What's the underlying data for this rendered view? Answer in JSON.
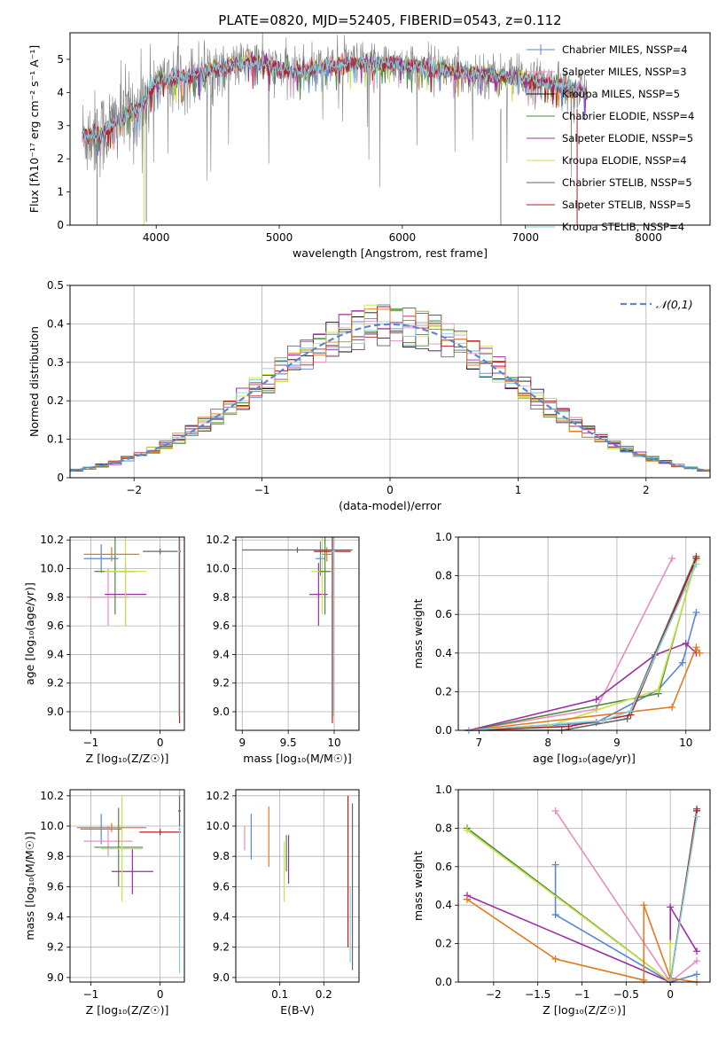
{
  "figure_title": "PLATE=0820, MJD=52405, FIBERID=0543, z=0.112",
  "colors": [
    "#5b86d6",
    "#e88dbf",
    "#111111",
    "#4a8a3a",
    "#9b2fa5",
    "#c7e34a",
    "#666666",
    "#b51f1f",
    "#86cfd8",
    "#e07b20"
  ],
  "chart_data": [
    {
      "id": "spectrum",
      "type": "line",
      "xlabel": "wavelength [Angstrom, rest frame]",
      "ylabel": "Flux [fλ10⁻¹⁷ erg cm⁻² s⁻¹ A⁻¹]",
      "xlim": [
        3300,
        8500
      ],
      "ylim": [
        0,
        5.8
      ],
      "xticks": [
        4000,
        5000,
        6000,
        7000,
        8000
      ],
      "yticks": [
        0,
        1,
        2,
        3,
        4,
        5
      ],
      "grid": false,
      "legend_position": "top-right",
      "legend": [
        "Chabrier MILES, NSSP=4",
        "Salpeter MILES, NSSP=3",
        "Kroupa MILES, NSSP=5",
        "Chabrier ELODIE, NSSP=4",
        "Salpeter ELODIE, NSSP=5",
        "Kroupa ELODIE, NSSP=4",
        "Chabrier STELIB, NSSP=5",
        "Salpeter STELIB, NSSP=5",
        "Kroupa STELIB, NSSP=4"
      ],
      "continuum": {
        "x": [
          3400,
          3550,
          3700,
          3850,
          4000,
          4200,
          4500,
          4800,
          5100,
          5500,
          6000,
          6500,
          7000,
          7300,
          7500
        ],
        "y": [
          2.7,
          2.75,
          3.2,
          3.5,
          4.3,
          4.45,
          4.7,
          4.95,
          4.6,
          4.85,
          4.85,
          4.6,
          4.4,
          4.2,
          4.0
        ]
      }
    },
    {
      "id": "residuals",
      "type": "histogram",
      "xlabel": "(data-model)/error",
      "ylabel": "Normed distribution",
      "xlim": [
        -2.5,
        2.5
      ],
      "ylim": [
        0,
        0.5
      ],
      "xticks": [
        -2,
        -1,
        0,
        1,
        2
      ],
      "yticks": [
        0,
        0.1,
        0.2,
        0.3,
        0.4,
        0.5
      ],
      "grid": true,
      "legend": "𝒩(0,1)",
      "legend_position": "top-right",
      "bin_width": 0.1
    },
    {
      "id": "age-vs-Z",
      "type": "errorbar",
      "xlabel": "Z [log₁₀(Z/Z☉)]",
      "ylabel": "age  [log₁₀(age/yr)]",
      "xlim": [
        -1.3,
        0.35
      ],
      "ylim": [
        8.87,
        10.22
      ],
      "xticks": [
        -1,
        0
      ],
      "yticks": [
        9.0,
        9.2,
        9.4,
        9.6,
        9.8,
        10.0,
        10.2
      ],
      "grid": true,
      "points": [
        {
          "x": -0.85,
          "xerr": 0.25,
          "y": 10.07,
          "yerr": 0.1,
          "color": 0
        },
        {
          "x": -0.75,
          "xerr": 0.3,
          "y": 9.8,
          "yerr": 0.2,
          "color": 1
        },
        {
          "x": -0.65,
          "xerr": 0.3,
          "y": 9.98,
          "yerr": 0.3,
          "color": 3
        },
        {
          "x": -0.5,
          "xerr": 0.3,
          "y": 9.82,
          "yerr": 0.22,
          "color": 4
        },
        {
          "x": -0.5,
          "xerr": 0.3,
          "y": 9.98,
          "yerr": 0.38,
          "color": 5
        },
        {
          "x": -0.7,
          "xerr": 0.4,
          "y": 10.1,
          "yerr": 0.05,
          "color": 9
        },
        {
          "x": 0.0,
          "xerr": 0.25,
          "y": 10.12,
          "yerr": 0.02,
          "color": 6
        },
        {
          "x": 0.28,
          "xerr": 0.02,
          "y": 10.12,
          "yerr": 1.2,
          "color": 7
        },
        {
          "x": 0.27,
          "xerr": 0.02,
          "y": 10.12,
          "yerr": 1.15,
          "color": 8
        }
      ]
    },
    {
      "id": "age-vs-mass",
      "type": "errorbar",
      "xlabel": "mass [log₁₀(M/M☉)]",
      "xlim": [
        8.93,
        10.27
      ],
      "ylim": [
        8.87,
        10.22
      ],
      "xticks": [
        9.0,
        9.5,
        10.0
      ],
      "yticks": [
        9.0,
        9.2,
        9.4,
        9.6,
        9.8,
        10.0,
        10.2
      ],
      "grid": true,
      "points": [
        {
          "x": 9.85,
          "xerr": 0.05,
          "y": 10.07,
          "yerr": 0.12,
          "color": 0
        },
        {
          "x": 9.83,
          "xerr": 0.1,
          "y": 9.82,
          "yerr": 0.22,
          "color": 4
        },
        {
          "x": 9.87,
          "xerr": 0.12,
          "y": 9.98,
          "yerr": 0.3,
          "color": 5
        },
        {
          "x": 9.9,
          "xerr": 0.06,
          "y": 9.98,
          "yerr": 0.3,
          "color": 3
        },
        {
          "x": 9.92,
          "xerr": 0.05,
          "y": 10.1,
          "yerr": 0.05,
          "color": 9
        },
        {
          "x": 9.6,
          "xerr": 0.6,
          "y": 10.13,
          "yerr": 0.02,
          "color": 6
        },
        {
          "x": 9.98,
          "xerr": 0.2,
          "y": 10.12,
          "yerr": 1.2,
          "color": 7
        },
        {
          "x": 9.99,
          "xerr": 0.02,
          "y": 10.12,
          "yerr": 1.15,
          "color": 8
        }
      ]
    },
    {
      "id": "weight-vs-age",
      "type": "line",
      "xlabel": "age  [log₁₀(age/yr)]",
      "ylabel": "mass weight",
      "xlim": [
        6.7,
        10.35
      ],
      "ylim": [
        0,
        1.0
      ],
      "xticks": [
        7,
        8,
        9,
        10
      ],
      "yticks": [
        0.0,
        0.2,
        0.4,
        0.6,
        0.8,
        1.0
      ],
      "grid": true,
      "series": [
        {
          "color": 1,
          "x": [
            6.85,
            8.7,
            9.8
          ],
          "y": [
            0.0,
            0.11,
            0.89
          ]
        },
        {
          "color": 0,
          "x": [
            6.85,
            8.7,
            9.6,
            9.95,
            10.15
          ],
          "y": [
            0.0,
            0.04,
            0.21,
            0.35,
            0.61
          ]
        },
        {
          "color": 3,
          "x": [
            6.85,
            9.6,
            10.15
          ],
          "y": [
            0.0,
            0.19,
            0.89
          ]
        },
        {
          "color": 4,
          "x": [
            6.85,
            8.7,
            9.55,
            10.0,
            10.15
          ],
          "y": [
            0.0,
            0.16,
            0.39,
            0.45,
            0.4
          ]
        },
        {
          "color": 5,
          "x": [
            6.85,
            8.0,
            9.6,
            10.15
          ],
          "y": [
            0.0,
            0.02,
            0.21,
            0.88
          ]
        },
        {
          "color": 9,
          "x": [
            6.85,
            9.8,
            10.15,
            10.2
          ],
          "y": [
            0.0,
            0.12,
            0.43,
            0.4
          ]
        },
        {
          "color": 6,
          "x": [
            6.85,
            8.2,
            9.15,
            10.15
          ],
          "y": [
            0.0,
            0.0,
            0.06,
            0.9
          ]
        },
        {
          "color": 7,
          "x": [
            6.85,
            8.3,
            9.2,
            10.15
          ],
          "y": [
            0.0,
            0.02,
            0.08,
            0.89
          ]
        },
        {
          "color": 8,
          "x": [
            6.85,
            8.8,
            9.2,
            10.15
          ],
          "y": [
            0.0,
            0.05,
            0.1,
            0.86
          ]
        }
      ]
    },
    {
      "id": "mass-vs-Z",
      "type": "errorbar",
      "xlabel": "Z [log₁₀(Z/Z☉)]",
      "ylabel": "mass [log₁₀(M/M☉)]",
      "xlim": [
        -1.3,
        0.35
      ],
      "ylim": [
        8.97,
        10.24
      ],
      "xticks": [
        -1,
        0
      ],
      "yticks": [
        9.0,
        9.2,
        9.4,
        9.6,
        9.8,
        10.0,
        10.2
      ],
      "grid": true,
      "points": [
        {
          "x": -0.85,
          "xerr": 0.3,
          "y": 9.98,
          "yerr": 0.1,
          "color": 0
        },
        {
          "x": -0.75,
          "xerr": 0.35,
          "y": 9.9,
          "yerr": 0.1,
          "color": 1
        },
        {
          "x": -0.6,
          "xerr": 0.35,
          "y": 9.86,
          "yerr": 0.26,
          "color": 3
        },
        {
          "x": -0.4,
          "xerr": 0.3,
          "y": 9.7,
          "yerr": 0.15,
          "color": 4
        },
        {
          "x": -0.55,
          "xerr": 0.3,
          "y": 9.85,
          "yerr": 0.35,
          "color": 5
        },
        {
          "x": -0.7,
          "xerr": 0.5,
          "y": 9.99,
          "yerr": 0.03,
          "color": 9
        },
        {
          "x": 0.0,
          "xerr": 0.3,
          "y": 9.96,
          "yerr": 0.02,
          "color": 7
        },
        {
          "x": 0.28,
          "xerr": 0.02,
          "y": 9.98,
          "yerr": 0.95,
          "color": 8
        },
        {
          "x": 0.28,
          "xerr": 0.02,
          "y": 10.1,
          "yerr": 0.1,
          "color": 6
        }
      ]
    },
    {
      "id": "mass-vs-ebv",
      "type": "errorbar",
      "xlabel": "E(B-V)",
      "xlim": [
        0.0,
        0.28
      ],
      "ylim": [
        8.97,
        10.24
      ],
      "xticks": [
        0.1,
        0.2
      ],
      "yticks": [
        9.0,
        9.2,
        9.4,
        9.6,
        9.8,
        10.0,
        10.2
      ],
      "grid": true,
      "points": [
        {
          "x": 0.02,
          "y": 9.92,
          "yerr": 0.08,
          "color": 1
        },
        {
          "x": 0.035,
          "y": 9.93,
          "yerr": 0.15,
          "color": 0
        },
        {
          "x": 0.075,
          "y": 9.93,
          "yerr": 0.2,
          "color": 9
        },
        {
          "x": 0.11,
          "y": 9.7,
          "yerr": 0.2,
          "color": 5
        },
        {
          "x": 0.115,
          "y": 9.82,
          "yerr": 0.12,
          "color": 3
        },
        {
          "x": 0.12,
          "y": 9.78,
          "yerr": 0.16,
          "color": 4
        },
        {
          "x": 0.255,
          "y": 9.7,
          "yerr": 0.5,
          "color": 7
        },
        {
          "x": 0.26,
          "y": 9.35,
          "yerr": 0.25,
          "color": 8
        },
        {
          "x": 0.265,
          "y": 9.6,
          "yerr": 0.55,
          "color": 6
        }
      ]
    },
    {
      "id": "weight-vs-Z",
      "type": "line",
      "xlabel": "Z [log₁₀(Z/Z☉)]",
      "ylabel": "mass weight",
      "xlim": [
        -2.4,
        0.45
      ],
      "ylim": [
        0,
        1.0
      ],
      "xticks": [
        -2.0,
        -1.5,
        -1.0,
        -0.5,
        0.0
      ],
      "yticks": [
        0.0,
        0.2,
        0.4,
        0.6,
        0.8,
        1.0
      ],
      "grid": true,
      "series": [
        {
          "color": 1,
          "x": [
            -1.3,
            0.0,
            0.3
          ],
          "y": [
            0.89,
            0.0,
            0.11
          ]
        },
        {
          "color": 0,
          "x": [
            -1.3,
            -1.3,
            0.0,
            0.3
          ],
          "y": [
            0.61,
            0.35,
            0.0,
            0.04
          ]
        },
        {
          "color": 3,
          "x": [
            -2.3,
            0.0,
            0.3
          ],
          "y": [
            0.8,
            0.0,
            0.89
          ]
        },
        {
          "color": 4,
          "x": [
            -2.3,
            0.0,
            0.0,
            0.3
          ],
          "y": [
            0.45,
            0.0,
            0.39,
            0.16
          ]
        },
        {
          "color": 5,
          "x": [
            -2.3,
            0.0,
            0.0
          ],
          "y": [
            0.79,
            0.0,
            0.2
          ]
        },
        {
          "color": 9,
          "x": [
            -2.3,
            -1.3,
            -0.3,
            -0.3,
            0.0,
            0.3
          ],
          "y": [
            0.43,
            0.12,
            0.01,
            0.4,
            0.02,
            0.0
          ]
        },
        {
          "color": 6,
          "x": [
            0.0,
            0.3
          ],
          "y": [
            0.0,
            0.9
          ]
        },
        {
          "color": 7,
          "x": [
            0.0,
            0.3
          ],
          "y": [
            0.0,
            0.89
          ]
        },
        {
          "color": 8,
          "x": [
            0.0,
            0.3
          ],
          "y": [
            0.0,
            0.86
          ]
        }
      ]
    }
  ]
}
